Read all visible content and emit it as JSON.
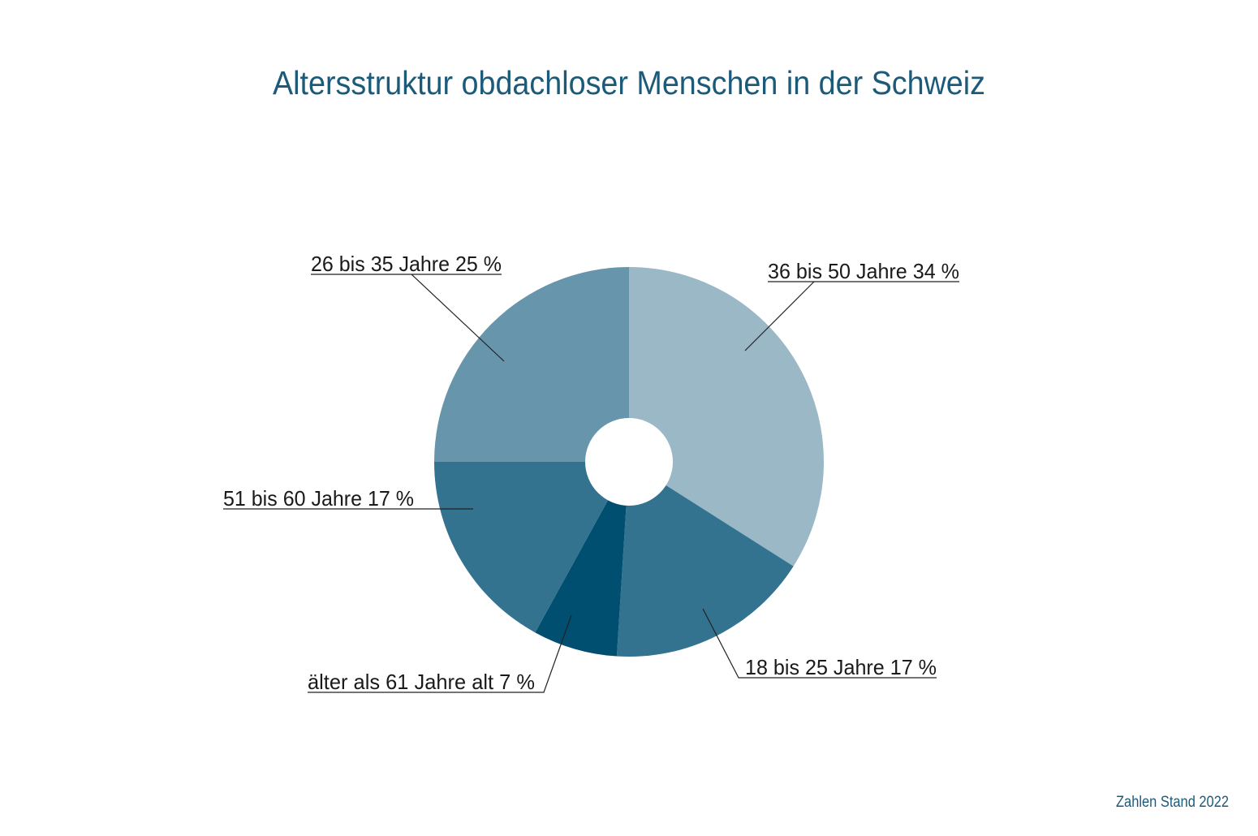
{
  "chart_data": {
    "type": "pie",
    "donut": true,
    "title": "Altersstruktur obdachloser Menschen in der Schweiz",
    "footnote": "Zahlen Stand 2022",
    "slices": [
      {
        "label": "36 bis 50 Jahre  34 %",
        "value": 34,
        "color": "#9bb8c6"
      },
      {
        "label": "18 bis 25 Jahre  17 %",
        "value": 17,
        "color": "#33738f"
      },
      {
        "label": "älter als 61 Jahre alt  7 %",
        "value": 7,
        "color": "#004f71"
      },
      {
        "label": "51 bis 60 Jahre  17 %",
        "value": 17,
        "color": "#33738f"
      },
      {
        "label": "26 bis 35 Jahre  25 %",
        "value": 25,
        "color": "#6795ab"
      }
    ]
  }
}
